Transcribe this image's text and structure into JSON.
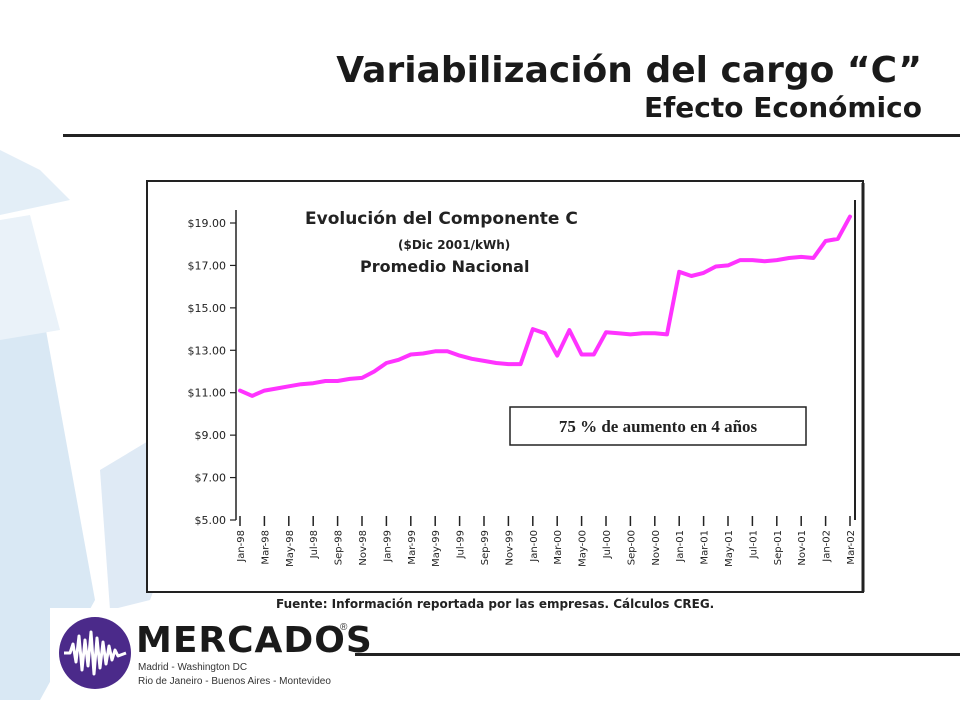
{
  "slide": {
    "title": "Variabilización del cargo “C”",
    "subtitle": "Efecto Económico",
    "source": "Fuente:  Información reportada por las empresas.  Cálculos CREG."
  },
  "chart_data": {
    "type": "line",
    "title": "Evolución del Componente C",
    "subtitle": "($Dic 2001/kWh)",
    "subtitle2": "Promedio Nacional",
    "annotation": "75 % de aumento en 4 años",
    "xlabel": "",
    "ylabel": "",
    "ylim": [
      5,
      20
    ],
    "y_ticks": [
      "$19.00",
      "$17.00",
      "$15.00",
      "$13.00",
      "$11.00",
      "$9.00",
      "$7.00",
      "$5.00"
    ],
    "y_tick_values": [
      19,
      17,
      15,
      13,
      11,
      9,
      7,
      5
    ],
    "x_ticks": [
      "Jan-98",
      "Mar-98",
      "May-98",
      "Jul-98",
      "Sep-98",
      "Nov-98",
      "Jan-99",
      "Mar-99",
      "May-99",
      "Jul-99",
      "Sep-99",
      "Nov-99",
      "Jan-00",
      "Mar-00",
      "May-00",
      "Jul-00",
      "Sep-00",
      "Nov-00",
      "Jan-01",
      "Mar-01",
      "May-01",
      "Jul-01",
      "Sep-01",
      "Nov-01",
      "Jan-02",
      "Mar-02"
    ],
    "grid": false,
    "legend": "none",
    "line_color": "#ff33ff",
    "series": [
      {
        "x": [
          "Jan-98",
          "Feb-98",
          "Mar-98",
          "Apr-98",
          "May-98",
          "Jun-98",
          "Jul-98",
          "Aug-98",
          "Sep-98",
          "Oct-98",
          "Nov-98",
          "Dec-98",
          "Jan-99",
          "Feb-99",
          "Mar-99",
          "Apr-99",
          "May-99",
          "Jun-99",
          "Jul-99",
          "Aug-99",
          "Sep-99",
          "Oct-99",
          "Nov-99",
          "Dec-99",
          "Jan-00",
          "Feb-00",
          "Mar-00",
          "Apr-00",
          "May-00",
          "Jun-00",
          "Jul-00",
          "Aug-00",
          "Sep-00",
          "Oct-00",
          "Nov-00",
          "Dec-00",
          "Jan-01",
          "Feb-01",
          "Mar-01",
          "Apr-01",
          "May-01",
          "Jun-01",
          "Jul-01",
          "Aug-01",
          "Sep-01",
          "Oct-01",
          "Nov-01",
          "Dec-01",
          "Jan-02",
          "Feb-02",
          "Mar-02"
        ],
        "values": [
          11.1,
          10.85,
          11.1,
          11.2,
          11.3,
          11.4,
          11.45,
          11.55,
          11.55,
          11.65,
          11.7,
          12.0,
          12.4,
          12.55,
          12.8,
          12.85,
          12.95,
          12.95,
          12.75,
          12.6,
          12.5,
          12.4,
          12.35,
          12.35,
          14.0,
          13.8,
          12.75,
          13.95,
          12.8,
          12.8,
          13.85,
          13.8,
          13.75,
          13.8,
          13.8,
          13.75,
          16.7,
          16.5,
          16.65,
          16.95,
          17.0,
          17.25,
          17.25,
          17.2,
          17.25,
          17.35,
          17.4,
          17.35,
          18.15,
          18.25,
          19.3
        ]
      }
    ]
  }
}
